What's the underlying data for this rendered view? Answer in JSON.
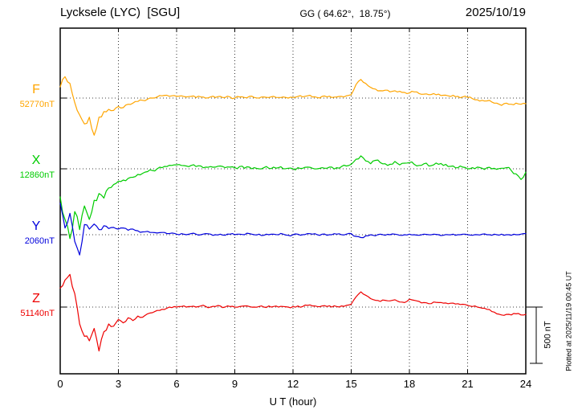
{
  "header": {
    "station": "Lycksele (LYC)  [SGU]",
    "coords": "GG ( 64.62°,  18.75°)",
    "date": "2025/10/19"
  },
  "axis": {
    "x_ticks": [
      "0",
      "3",
      "6",
      "9",
      "12",
      "15",
      "18",
      "21",
      "24"
    ],
    "x_label": "U T (hour)"
  },
  "scale_bar": {
    "label": "500 nT"
  },
  "footer_note": "Plotted at 2025/11/19 00:45 UT",
  "components": [
    {
      "letter": "F",
      "value_label": "52770nT",
      "color": "#FFA500"
    },
    {
      "letter": "X",
      "value_label": "12860nT",
      "color": "#00CC00"
    },
    {
      "letter": "Y",
      "value_label": "2060nT",
      "color": "#0000DD"
    },
    {
      "letter": "Z",
      "value_label": "51140nT",
      "color": "#EE0000"
    }
  ],
  "chart_data": {
    "type": "line",
    "title": "Lycksele (LYC) [SGU] magnetogram 2025/10/19",
    "xlabel": "U T (hour)",
    "x_range": [
      0,
      24
    ],
    "x_step_hours": 0.25,
    "scale_nT": 500,
    "grid": "dotted",
    "series": [
      {
        "name": "F",
        "baseline_nT": 52770,
        "color": "#FFA500",
        "noise_nT": 10,
        "offsets_nT": [
          100,
          190,
          130,
          -40,
          -150,
          -230,
          -170,
          -330,
          -170,
          -120,
          -100,
          -110,
          -75,
          -85,
          -55,
          -45,
          -30,
          -20,
          -10,
          0,
          10,
          20,
          25,
          20,
          15,
          20,
          10,
          15,
          5,
          10,
          0,
          10,
          5,
          15,
          5,
          10,
          0,
          10,
          5,
          15,
          5,
          0,
          10,
          5,
          15,
          5,
          10,
          0,
          5,
          15,
          10,
          20,
          10,
          5,
          15,
          10,
          5,
          10,
          15,
          20,
          30,
          120,
          165,
          130,
          95,
          80,
          65,
          70,
          55,
          65,
          60,
          50,
          45,
          55,
          40,
          35,
          30,
          40,
          35,
          25,
          20,
          25,
          15,
          10,
          5,
          -5,
          -15,
          -20,
          -25,
          -35,
          -45,
          -65,
          -45,
          -55,
          -45,
          -55,
          -50
        ]
      },
      {
        "name": "X",
        "baseline_nT": 12860,
        "color": "#00CC00",
        "noise_nT": 16,
        "offsets_nT": [
          -250,
          -450,
          -620,
          -380,
          -540,
          -330,
          -450,
          -280,
          -220,
          -260,
          -170,
          -140,
          -110,
          -100,
          -85,
          -75,
          -50,
          -40,
          -25,
          -15,
          0,
          10,
          20,
          30,
          35,
          30,
          25,
          30,
          20,
          25,
          15,
          20,
          15,
          25,
          10,
          15,
          10,
          20,
          5,
          15,
          10,
          0,
          10,
          5,
          15,
          10,
          0,
          5,
          0,
          10,
          5,
          15,
          5,
          0,
          10,
          5,
          15,
          10,
          20,
          25,
          40,
          85,
          115,
          70,
          45,
          75,
          55,
          45,
          40,
          65,
          35,
          50,
          55,
          40,
          30,
          45,
          25,
          35,
          40,
          30,
          20,
          25,
          10,
          15,
          0,
          10,
          15,
          5,
          10,
          0,
          -5,
          5,
          10,
          -15,
          -45,
          -95,
          -30
        ]
      },
      {
        "name": "Y",
        "baseline_nT": 2060,
        "color": "#0000DD",
        "noise_nT": 9,
        "offsets_nT": [
          280,
          60,
          190,
          -60,
          -180,
          90,
          50,
          95,
          45,
          80,
          55,
          65,
          50,
          60,
          40,
          50,
          35,
          25,
          30,
          20,
          15,
          20,
          10,
          15,
          5,
          10,
          0,
          10,
          5,
          0,
          10,
          5,
          0,
          5,
          -5,
          5,
          0,
          5,
          0,
          10,
          0,
          5,
          -5,
          0,
          5,
          0,
          5,
          -5,
          0,
          5,
          0,
          10,
          5,
          0,
          5,
          -5,
          0,
          5,
          0,
          5,
          10,
          -15,
          -25,
          -10,
          0,
          -10,
          5,
          -5,
          0,
          5,
          -5,
          0,
          5,
          0,
          -5,
          5,
          0,
          5,
          0,
          -5,
          0,
          5,
          0,
          5,
          0,
          -5,
          0,
          5,
          0,
          -5,
          0,
          5,
          0,
          -5,
          0,
          5,
          10
        ]
      },
      {
        "name": "Z",
        "baseline_nT": 51140,
        "color": "#EE0000",
        "noise_nT": 10,
        "offsets_nT": [
          170,
          240,
          290,
          120,
          -150,
          -260,
          -300,
          -190,
          -390,
          -220,
          -150,
          -170,
          -110,
          -140,
          -95,
          -120,
          -80,
          -90,
          -60,
          -50,
          -30,
          -20,
          -10,
          -5,
          0,
          5,
          0,
          5,
          0,
          10,
          5,
          0,
          5,
          10,
          0,
          5,
          0,
          5,
          10,
          5,
          0,
          5,
          0,
          10,
          5,
          0,
          5,
          0,
          5,
          10,
          5,
          15,
          10,
          5,
          10,
          5,
          0,
          5,
          10,
          15,
          25,
          90,
          135,
          105,
          75,
          60,
          50,
          60,
          55,
          65,
          45,
          40,
          70,
          60,
          50,
          40,
          30,
          45,
          40,
          35,
          30,
          35,
          30,
          25,
          15,
          5,
          0,
          -10,
          -20,
          -40,
          -60,
          -70,
          -65,
          -70,
          -60,
          -70,
          -65
        ]
      }
    ]
  }
}
